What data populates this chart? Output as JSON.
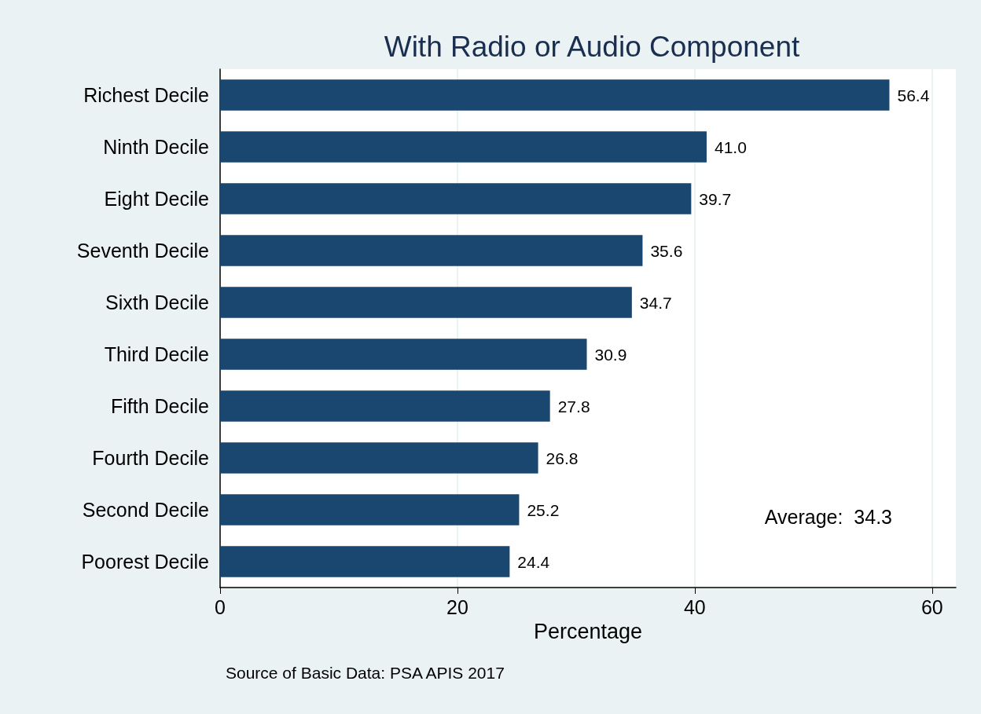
{
  "chart_data": {
    "type": "bar",
    "orientation": "horizontal",
    "title": "With Radio or Audio Component",
    "xlabel": "Percentage",
    "categories": [
      "Richest Decile",
      "Ninth Decile",
      "Eight Decile",
      "Seventh Decile",
      "Sixth Decile",
      "Third Decile",
      "Fifth Decile",
      "Fourth Decile",
      "Second Decile",
      "Poorest Decile"
    ],
    "values": [
      56.4,
      41.0,
      39.7,
      35.6,
      34.7,
      30.9,
      27.8,
      26.8,
      25.2,
      24.4
    ],
    "value_labels": [
      "56.4",
      "41.0",
      "39.7",
      "35.6",
      "34.7",
      "30.9",
      "27.8",
      "26.8",
      "25.2",
      "24.4"
    ],
    "color": "#1a476f",
    "xlim": [
      0,
      62
    ],
    "xticks": [
      0,
      20,
      40,
      60
    ],
    "grid": "x",
    "annotations": [
      "Average:  34.3",
      "Source of Basic Data: PSA APIS 2017"
    ]
  }
}
